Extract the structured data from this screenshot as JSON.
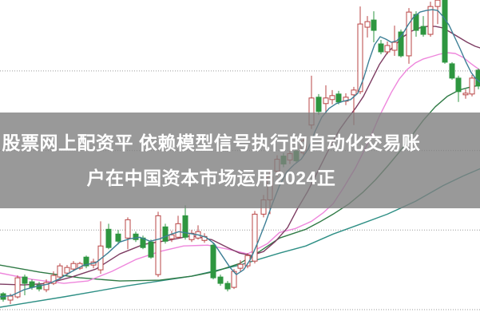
{
  "page": {
    "title": "股票网上配资平 依赖模型信号执行的自动化交易账户在中国资本市场运用2024正"
  },
  "banner": {
    "line1": "股票网上配资平 依赖模型信号执行的自动化交易账",
    "line2": "户在中国资本市场运用2024正",
    "bg_color": "rgba(128,128,128,0.8)",
    "text_color": "#ffffff"
  },
  "chart_data": {
    "type": "candlestick",
    "title": "",
    "xlabel": "",
    "ylabel": "",
    "axes": {
      "price_gridlines": [
        10,
        11,
        12,
        13
      ],
      "grid_style": "dotted",
      "x_axis_labels_visible": false,
      "y_axis_labels_visible": false,
      "price_range_visible": [
        9.9,
        13.9
      ]
    },
    "colors": {
      "up": "#b94444",
      "up_fill": "#ffffff",
      "down": "#2e9640",
      "grid": "#9a9a9a",
      "ma5": "#3d7f96",
      "ma10": "#7d3c62",
      "ma20": "#ee86dc",
      "ma30": "#2f7a45",
      "ma60": "#2e8f85"
    },
    "candles_note": "[x_px, open, high, low, close]; close>=open drawn as hollow red (up), close<open drawn as solid green (down)",
    "candles": [
      [
        4,
        10.2,
        10.22,
        10.1,
        10.13
      ],
      [
        13,
        10.12,
        10.2,
        10.07,
        10.17
      ],
      [
        22,
        10.16,
        10.43,
        10.14,
        10.4
      ],
      [
        31,
        10.41,
        10.44,
        10.18,
        10.33
      ],
      [
        40,
        10.35,
        10.38,
        10.25,
        10.28
      ],
      [
        49,
        10.31,
        10.35,
        10.23,
        10.26
      ],
      [
        58,
        10.25,
        10.38,
        10.22,
        10.34
      ],
      [
        67,
        10.33,
        10.48,
        10.31,
        10.43
      ],
      [
        75,
        10.41,
        10.58,
        10.38,
        10.55
      ],
      [
        84,
        10.46,
        10.56,
        10.43,
        10.53
      ],
      [
        92,
        10.51,
        10.61,
        10.48,
        10.58
      ],
      [
        100,
        10.52,
        10.6,
        10.5,
        10.58
      ],
      [
        108,
        10.66,
        10.68,
        10.52,
        10.55
      ],
      [
        117,
        10.56,
        10.64,
        10.52,
        10.6
      ],
      [
        126,
        10.5,
        11.11,
        10.45,
        10.8
      ],
      [
        136,
        11.01,
        11.08,
        10.76,
        10.78
      ],
      [
        148,
        10.95,
        11.0,
        10.82,
        10.86
      ],
      [
        160,
        10.9,
        11.16,
        10.76,
        11.13
      ],
      [
        170,
        10.95,
        10.98,
        10.85,
        10.88
      ],
      [
        179,
        10.9,
        10.93,
        10.76,
        10.78
      ],
      [
        189,
        10.85,
        10.88,
        10.64,
        10.66
      ],
      [
        198,
        10.44,
        11.23,
        10.41,
        11.18
      ],
      [
        207,
        11.04,
        11.08,
        10.83,
        10.86
      ],
      [
        215,
        10.89,
        10.99,
        10.85,
        10.94
      ],
      [
        223,
        10.91,
        11.18,
        10.89,
        11.08
      ],
      [
        232,
        11.18,
        11.31,
        10.88,
        10.91
      ],
      [
        240,
        10.88,
        11.0,
        10.85,
        10.96
      ],
      [
        248,
        10.9,
        11.06,
        10.88,
        10.98
      ],
      [
        256,
        10.87,
        10.96,
        10.84,
        10.92
      ],
      [
        267,
        10.81,
        10.84,
        10.38,
        10.4
      ],
      [
        276,
        10.41,
        10.44,
        10.3,
        10.33
      ],
      [
        285,
        10.33,
        10.36,
        10.23,
        10.26
      ],
      [
        293,
        10.28,
        10.51,
        10.26,
        10.48
      ],
      [
        301,
        10.52,
        10.62,
        10.48,
        10.57
      ],
      [
        310,
        10.55,
        10.71,
        10.52,
        10.68
      ],
      [
        319,
        10.61,
        11.24,
        10.58,
        11.2
      ],
      [
        330,
        11.2,
        11.44,
        11.16,
        11.38
      ],
      [
        338,
        11.38,
        11.74,
        11.2,
        11.67
      ],
      [
        347,
        11.74,
        11.94,
        11.67,
        11.89
      ],
      [
        355,
        11.93,
        11.97,
        11.79,
        11.83
      ],
      [
        363,
        11.88,
        12.0,
        11.83,
        11.96
      ],
      [
        371,
        11.99,
        12.03,
        11.84,
        11.87
      ],
      [
        380,
        11.97,
        12.17,
        11.93,
        12.12
      ],
      [
        390,
        12.32,
        12.94,
        12.27,
        12.66
      ],
      [
        399,
        12.67,
        12.71,
        12.45,
        12.49
      ],
      [
        408,
        12.59,
        12.82,
        12.46,
        12.66
      ],
      [
        416,
        12.64,
        12.76,
        12.58,
        12.69
      ],
      [
        424,
        12.71,
        12.75,
        12.58,
        12.61
      ],
      [
        433,
        12.62,
        12.72,
        12.57,
        12.67
      ],
      [
        443,
        12.7,
        12.8,
        12.32,
        12.76
      ],
      [
        451,
        12.74,
        13.81,
        12.71,
        13.59
      ],
      [
        460,
        13.55,
        13.69,
        13.42,
        13.62
      ],
      [
        468,
        13.64,
        13.75,
        13.36,
        13.51
      ],
      [
        477,
        13.34,
        13.39,
        13.21,
        13.24
      ],
      [
        485,
        13.24,
        13.37,
        13.21,
        13.32
      ],
      [
        494,
        13.26,
        13.57,
        13.19,
        13.36
      ],
      [
        502,
        13.49,
        13.52,
        13.17,
        13.19
      ],
      [
        512,
        13.19,
        13.79,
        13.09,
        13.74
      ],
      [
        521,
        13.71,
        13.75,
        13.43,
        13.51
      ],
      [
        530,
        13.56,
        13.69,
        13.43,
        13.46
      ],
      [
        539,
        13.46,
        13.87,
        13.43,
        13.81
      ],
      [
        548,
        13.81,
        13.89,
        13.59,
        13.89
      ],
      [
        557,
        13.89,
        13.89,
        13.09,
        13.11
      ],
      [
        566,
        13.09,
        13.11,
        12.89,
        12.91
      ],
      [
        574,
        12.91,
        12.94,
        12.61,
        12.74
      ],
      [
        583,
        12.7,
        12.77,
        12.65,
        12.72
      ],
      [
        591,
        12.71,
        12.95,
        12.68,
        12.91
      ],
      [
        599,
        13.01,
        13.03,
        12.77,
        12.81
      ]
    ],
    "moving_averages": [
      {
        "name": "MA60",
        "color_key": "ma60",
        "layer": "below",
        "points": [
          [
            0,
            10.03
          ],
          [
            80,
            10.16
          ],
          [
            160,
            10.3
          ],
          [
            240,
            10.42
          ],
          [
            300,
            10.56
          ],
          [
            350,
            10.71
          ],
          [
            383,
            10.8
          ],
          [
            417,
            10.95
          ],
          [
            450,
            11.07
          ],
          [
            485,
            11.2
          ],
          [
            520,
            11.36
          ],
          [
            555,
            11.56
          ],
          [
            580,
            11.68
          ],
          [
            601,
            11.77
          ]
        ]
      },
      {
        "name": "MA30",
        "color_key": "ma30",
        "layer": "below",
        "points": [
          [
            0,
            10.56
          ],
          [
            50,
            10.47
          ],
          [
            100,
            10.4
          ],
          [
            150,
            10.36
          ],
          [
            200,
            10.37
          ],
          [
            240,
            10.42
          ],
          [
            270,
            10.48
          ],
          [
            300,
            10.58
          ],
          [
            325,
            10.73
          ],
          [
            350,
            10.9
          ],
          [
            383,
            11.01
          ],
          [
            400,
            11.1
          ],
          [
            417,
            11.2
          ],
          [
            437,
            11.33
          ],
          [
            455,
            11.48
          ],
          [
            470,
            11.63
          ],
          [
            485,
            11.8
          ],
          [
            500,
            11.98
          ],
          [
            515,
            12.18
          ],
          [
            530,
            12.38
          ],
          [
            545,
            12.55
          ],
          [
            560,
            12.68
          ],
          [
            575,
            12.76
          ],
          [
            590,
            12.8
          ],
          [
            601,
            12.82
          ]
        ]
      },
      {
        "name": "MA20",
        "color_key": "ma20",
        "layer": "below",
        "points": [
          [
            0,
            10.46
          ],
          [
            40,
            10.38
          ],
          [
            80,
            10.33
          ],
          [
            110,
            10.36
          ],
          [
            140,
            10.48
          ],
          [
            170,
            10.63
          ],
          [
            200,
            10.73
          ],
          [
            230,
            10.8
          ],
          [
            260,
            10.81
          ],
          [
            285,
            10.76
          ],
          [
            310,
            10.7
          ],
          [
            335,
            10.83
          ],
          [
            350,
            10.97
          ],
          [
            370,
            11.02
          ],
          [
            390,
            11.11
          ],
          [
            405,
            11.22
          ],
          [
            417,
            11.33
          ],
          [
            430,
            11.53
          ],
          [
            445,
            11.78
          ],
          [
            460,
            12.08
          ],
          [
            475,
            12.43
          ],
          [
            490,
            12.73
          ],
          [
            500,
            12.9
          ],
          [
            510,
            13.02
          ],
          [
            520,
            13.1
          ],
          [
            530,
            13.15
          ],
          [
            540,
            13.18
          ],
          [
            550,
            13.21
          ],
          [
            560,
            13.23
          ],
          [
            570,
            13.22
          ],
          [
            580,
            13.17
          ],
          [
            590,
            13.09
          ],
          [
            601,
            13.01
          ]
        ]
      },
      {
        "name": "MA10",
        "color_key": "ma10",
        "layer": "below",
        "points": [
          [
            0,
            10.32
          ],
          [
            30,
            10.31
          ],
          [
            60,
            10.33
          ],
          [
            90,
            10.41
          ],
          [
            120,
            10.51
          ],
          [
            150,
            10.7
          ],
          [
            180,
            10.82
          ],
          [
            210,
            10.87
          ],
          [
            240,
            10.93
          ],
          [
            265,
            10.88
          ],
          [
            285,
            10.78
          ],
          [
            300,
            10.71
          ],
          [
            315,
            10.68
          ],
          [
            330,
            10.73
          ],
          [
            345,
            10.86
          ],
          [
            360,
            11.03
          ],
          [
            372,
            11.26
          ],
          [
            385,
            11.48
          ],
          [
            395,
            11.68
          ],
          [
            405,
            11.88
          ],
          [
            415,
            12.08
          ],
          [
            425,
            12.26
          ],
          [
            435,
            12.4
          ],
          [
            445,
            12.53
          ],
          [
            455,
            12.68
          ],
          [
            465,
            12.88
          ],
          [
            475,
            13.08
          ],
          [
            485,
            13.23
          ],
          [
            495,
            13.33
          ],
          [
            505,
            13.43
          ],
          [
            515,
            13.5
          ],
          [
            525,
            13.54
          ],
          [
            535,
            13.56
          ],
          [
            545,
            13.56
          ],
          [
            555,
            13.54
          ],
          [
            565,
            13.48
          ],
          [
            575,
            13.42
          ],
          [
            585,
            13.36
          ],
          [
            595,
            13.31
          ],
          [
            601,
            13.29
          ]
        ]
      },
      {
        "name": "MA5",
        "color_key": "ma5",
        "layer": "above",
        "points": [
          [
            0,
            10.16
          ],
          [
            15,
            10.18
          ],
          [
            30,
            10.25
          ],
          [
            45,
            10.29
          ],
          [
            60,
            10.32
          ],
          [
            75,
            10.39
          ],
          [
            90,
            10.48
          ],
          [
            105,
            10.56
          ],
          [
            120,
            10.59
          ],
          [
            135,
            10.71
          ],
          [
            150,
            10.85
          ],
          [
            162,
            10.89
          ],
          [
            175,
            10.91
          ],
          [
            188,
            10.86
          ],
          [
            200,
            10.89
          ],
          [
            212,
            10.94
          ],
          [
            224,
            10.98
          ],
          [
            236,
            10.96
          ],
          [
            248,
            10.94
          ],
          [
            258,
            10.91
          ],
          [
            268,
            10.83
          ],
          [
            278,
            10.68
          ],
          [
            288,
            10.53
          ],
          [
            296,
            10.44
          ],
          [
            305,
            10.5
          ],
          [
            314,
            10.64
          ],
          [
            323,
            10.85
          ],
          [
            332,
            11.08
          ],
          [
            341,
            11.33
          ],
          [
            350,
            11.56
          ],
          [
            359,
            11.73
          ],
          [
            368,
            11.82
          ],
          [
            377,
            11.89
          ],
          [
            386,
            12.02
          ],
          [
            394,
            12.23
          ],
          [
            403,
            12.42
          ],
          [
            412,
            12.53
          ],
          [
            421,
            12.59
          ],
          [
            430,
            12.62
          ],
          [
            439,
            12.64
          ],
          [
            448,
            12.72
          ],
          [
            455,
            12.9
          ],
          [
            462,
            13.13
          ],
          [
            469,
            13.33
          ],
          [
            476,
            13.43
          ],
          [
            483,
            13.4
          ],
          [
            490,
            13.36
          ],
          [
            497,
            13.38
          ],
          [
            504,
            13.46
          ],
          [
            511,
            13.58
          ],
          [
            518,
            13.68
          ],
          [
            526,
            13.74
          ],
          [
            534,
            13.76
          ],
          [
            541,
            13.77
          ],
          [
            548,
            13.76
          ],
          [
            555,
            13.68
          ],
          [
            562,
            13.58
          ],
          [
            569,
            13.43
          ],
          [
            576,
            13.28
          ],
          [
            583,
            13.12
          ],
          [
            590,
            12.98
          ],
          [
            596,
            12.9
          ],
          [
            601,
            12.86
          ]
        ]
      }
    ]
  }
}
